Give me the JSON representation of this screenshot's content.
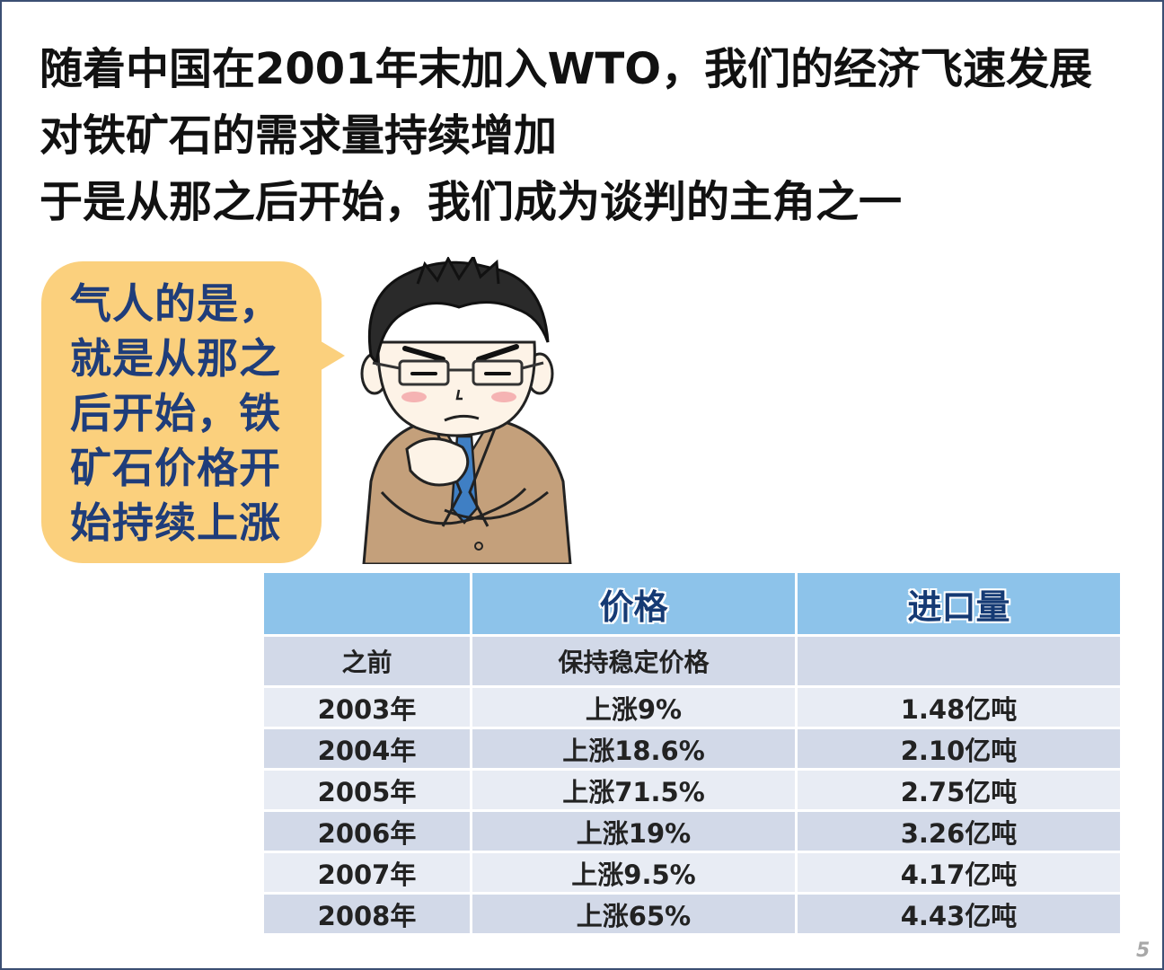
{
  "headline": {
    "line1": "随着中国在2001年末加入WTO，我们的经济飞速发展",
    "line2": "对铁矿石的需求量持续增加",
    "line3": "于是从那之后开始，我们成为谈判的主角之一"
  },
  "bubble": {
    "lines": [
      "气人的是，",
      "就是从那之",
      "后开始，铁",
      "矿石价格开",
      "始持续上涨"
    ]
  },
  "table": {
    "headers": [
      "",
      "价格",
      "进口量"
    ],
    "rows": [
      {
        "period": "之前",
        "price": "保持稳定价格",
        "import": ""
      },
      {
        "period": "2003年",
        "price": "上涨9%",
        "import": "1.48亿吨"
      },
      {
        "period": "2004年",
        "price": "上涨18.6%",
        "import": "2.10亿吨"
      },
      {
        "period": "2005年",
        "price": "上涨71.5%",
        "import": "2.75亿吨"
      },
      {
        "period": "2006年",
        "price": "上涨19%",
        "import": "3.26亿吨"
      },
      {
        "period": "2007年",
        "price": "上涨9.5%",
        "import": "4.17亿吨"
      },
      {
        "period": "2008年",
        "price": "上涨65%",
        "import": "4.43亿吨"
      }
    ]
  },
  "page_number": "5",
  "colors": {
    "bubble": "#fbd07d",
    "bubble_text": "#1f3d7a",
    "table_header": "#8dc3ea",
    "table_row_dark": "#d2d9e8",
    "table_row_light": "#e8ecf4",
    "frame": "#3b4f73"
  },
  "icons": {
    "character": "cartoon-man-frowning-with-glasses"
  }
}
